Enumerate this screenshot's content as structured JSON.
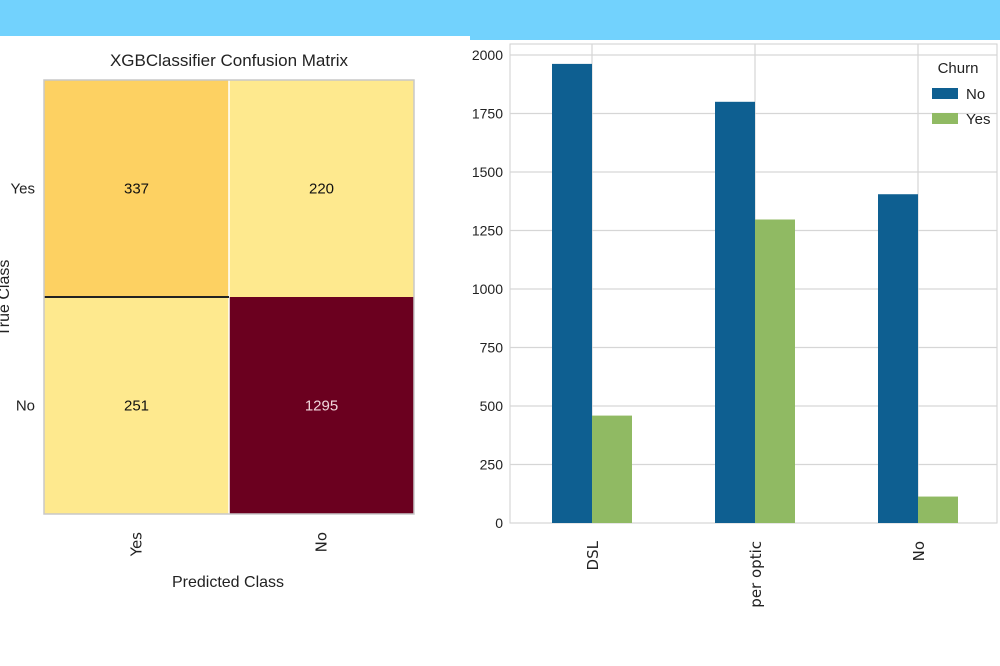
{
  "colors": {
    "banner": "#72d2fd",
    "cm_low": "#fee98e",
    "cm_mid": "#fdd162",
    "cm_high": "#6b001f",
    "series_no": "#0e5f91",
    "series_yes": "#90ba63"
  },
  "chart_data": [
    {
      "type": "heatmap",
      "title": "XGBClassifier Confusion Matrix",
      "xlabel": "Predicted Class",
      "ylabel": "True Class",
      "x_categories": [
        "Yes",
        "No"
      ],
      "y_categories": [
        "Yes",
        "No"
      ],
      "values": [
        [
          337,
          220
        ],
        [
          251,
          1295
        ]
      ],
      "cell_labels": [
        [
          "337",
          "220"
        ],
        [
          "251",
          "1295"
        ]
      ]
    },
    {
      "type": "bar",
      "categories": [
        "DSL",
        "Fiber optic",
        "No"
      ],
      "category_labels": [
        "DSL",
        "per optic",
        "No"
      ],
      "series": [
        {
          "name": "No",
          "values": [
            1962,
            1800,
            1405
          ]
        },
        {
          "name": "Yes",
          "values": [
            459,
            1297,
            113
          ]
        }
      ],
      "legend_title": "Churn",
      "legend_position": "top-right",
      "ylim": [
        0,
        2000
      ],
      "yticks": [
        0,
        250,
        500,
        750,
        1000,
        1250,
        1500,
        1750,
        2000
      ],
      "ytick_labels": [
        "0",
        "250",
        "500",
        "750",
        "1000",
        "1250",
        "1500",
        "1750",
        "2000"
      ],
      "grid": true
    }
  ]
}
